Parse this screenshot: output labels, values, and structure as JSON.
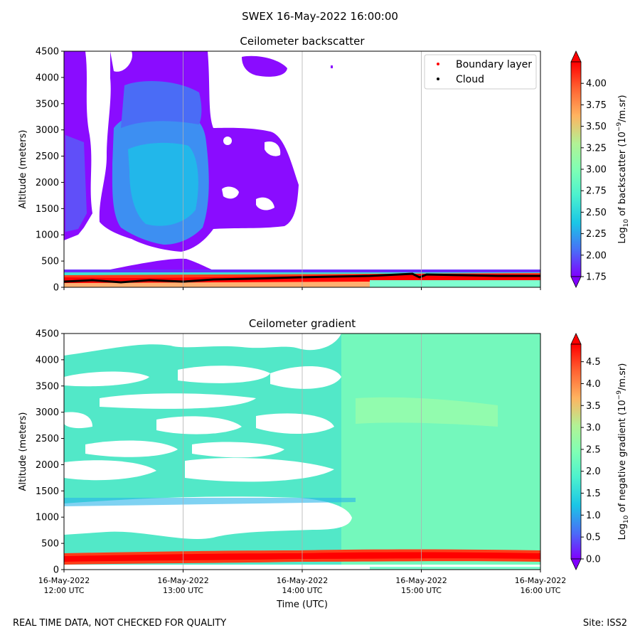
{
  "suptitle": "SWEX 16-May-2022 16:00:00",
  "footer": {
    "left": "REAL TIME DATA, NOT CHECKED FOR QUALITY",
    "right": "Site: ISS2"
  },
  "colormap": "rainbow",
  "chart_data": [
    {
      "type": "heatmap",
      "title": "Ceilometer backscatter",
      "xlabel": "",
      "ylabel": "Altitude (meters)",
      "x_ticks": [
        "16-May-2022\n12:00 UTC",
        "16-May-2022\n13:00 UTC",
        "16-May-2022\n14:00 UTC",
        "16-May-2022\n15:00 UTC",
        "16-May-2022\n16:00 UTC"
      ],
      "x_tick_labels_visible": false,
      "xlim_hours": [
        12,
        16
      ],
      "ylim": [
        0,
        4500
      ],
      "y_ticks": [
        0,
        500,
        1000,
        1500,
        2000,
        2500,
        3000,
        3500,
        4000,
        4500
      ],
      "grid": "vertical",
      "colorbar": {
        "label": "Log10 of backscatter (10^-9/m.sr)",
        "range": [
          1.75,
          4.25
        ],
        "ticks": [
          "1.75",
          "2.00",
          "2.25",
          "2.50",
          "2.75",
          "3.00",
          "3.25",
          "3.50",
          "3.75",
          "4.00"
        ],
        "extend": "both"
      },
      "legend": {
        "placement": "top-right",
        "entries": [
          {
            "name": "Boundary layer",
            "marker": "dot",
            "color": "#ff0000"
          },
          {
            "name": "Cloud",
            "marker": "dot",
            "color": "#000000"
          }
        ]
      },
      "features": [
        {
          "type": "aerosol-layer",
          "x_hours": [
            12.0,
            13.1
          ],
          "y_range": [
            900,
            4500
          ],
          "value": 1.8
        },
        {
          "type": "aerosol-layer",
          "x_hours": [
            12.25,
            13.2
          ],
          "y_range": [
            750,
            4500
          ],
          "value": 2.3
        },
        {
          "type": "aerosol-layer",
          "x_hours": [
            13.2,
            14.0
          ],
          "y_range": [
            1000,
            3200
          ],
          "value": 1.8
        },
        {
          "type": "surface-layer",
          "x_hours": [
            12,
            16
          ],
          "y_range": [
            0,
            300
          ],
          "value": 4.0
        }
      ],
      "cloud_altitude_m": {
        "x_hours": [
          12,
          12.5,
          13,
          13.5,
          14,
          14.5,
          15,
          15.5,
          16
        ],
        "y": [
          80,
          110,
          95,
          120,
          150,
          190,
          230,
          190,
          200
        ]
      }
    },
    {
      "type": "heatmap",
      "title": "Ceilometer gradient",
      "xlabel": "Time (UTC)",
      "ylabel": "Altitude (meters)",
      "x_ticks": [
        "16-May-2022\n12:00 UTC",
        "16-May-2022\n13:00 UTC",
        "16-May-2022\n14:00 UTC",
        "16-May-2022\n15:00 UTC",
        "16-May-2022\n16:00 UTC"
      ],
      "xlim_hours": [
        12,
        16
      ],
      "ylim": [
        0,
        4500
      ],
      "y_ticks": [
        0,
        500,
        1000,
        1500,
        2000,
        2500,
        3000,
        3500,
        4000,
        4500
      ],
      "grid": "vertical",
      "colorbar": {
        "label": "Log10 of negative gradient (10^-9/m.sr)",
        "range": [
          0,
          4.9
        ],
        "ticks": [
          "0.0",
          "0.5",
          "1.0",
          "1.5",
          "2.0",
          "2.5",
          "3.0",
          "3.5",
          "4.0",
          "4.5"
        ],
        "extend": "both"
      },
      "features": [
        {
          "type": "gradient-field",
          "x_hours": [
            12,
            16
          ],
          "y_range": [
            300,
            4500
          ],
          "value": 2.0
        },
        {
          "type": "surface-layer",
          "x_hours": [
            12,
            16
          ],
          "y_range": [
            100,
            300
          ],
          "value": 4.8
        }
      ]
    }
  ]
}
